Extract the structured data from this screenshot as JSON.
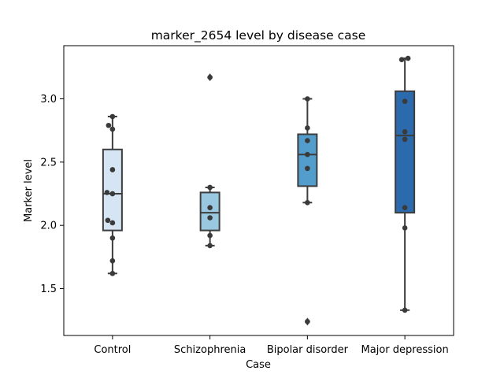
{
  "chart_data": {
    "type": "box",
    "title": "marker_2654 level by disease case",
    "xlabel": "Case",
    "ylabel": "Marker level",
    "ylim": [
      1.13,
      3.42
    ],
    "yticks": [
      "1.5",
      "2.0",
      "2.5",
      "3.0"
    ],
    "ytick_values": [
      1.5,
      2.0,
      2.5,
      3.0
    ],
    "categories": [
      "Control",
      "Schizophrenia",
      "Bipolar disorder",
      "Major depression"
    ],
    "colors": [
      "#d6e5f4",
      "#9ac8e0",
      "#529dcc",
      "#2a6aad"
    ],
    "boxes": [
      {
        "q1": 1.96,
        "median": 2.25,
        "q3": 2.6,
        "whisker_low": 1.62,
        "whisker_high": 2.86,
        "fliers": []
      },
      {
        "q1": 1.96,
        "median": 2.1,
        "q3": 2.26,
        "whisker_low": 1.84,
        "whisker_high": 2.3,
        "fliers": [
          3.17
        ]
      },
      {
        "q1": 2.31,
        "median": 2.56,
        "q3": 2.72,
        "whisker_low": 2.18,
        "whisker_high": 3.0,
        "fliers": [
          1.24
        ]
      },
      {
        "q1": 2.1,
        "median": 2.71,
        "q3": 3.06,
        "whisker_low": 1.33,
        "whisker_high": 3.32,
        "fliers": []
      }
    ],
    "points": [
      [
        {
          "y": 2.86,
          "dx": 0
        },
        {
          "y": 2.79,
          "dx": -5
        },
        {
          "y": 2.76,
          "dx": 0
        },
        {
          "y": 2.44,
          "dx": 0
        },
        {
          "y": 2.26,
          "dx": -7
        },
        {
          "y": 2.25,
          "dx": 0
        },
        {
          "y": 2.04,
          "dx": -6
        },
        {
          "y": 2.02,
          "dx": 0
        },
        {
          "y": 1.9,
          "dx": 0
        },
        {
          "y": 1.72,
          "dx": 0
        },
        {
          "y": 1.62,
          "dx": 0
        }
      ],
      [
        {
          "y": 3.17,
          "dx": 0
        },
        {
          "y": 2.3,
          "dx": 0
        },
        {
          "y": 2.14,
          "dx": 0
        },
        {
          "y": 2.06,
          "dx": 0
        },
        {
          "y": 1.92,
          "dx": 0
        },
        {
          "y": 1.84,
          "dx": 0
        }
      ],
      [
        {
          "y": 3.0,
          "dx": 0
        },
        {
          "y": 2.77,
          "dx": 0
        },
        {
          "y": 2.67,
          "dx": 0
        },
        {
          "y": 2.56,
          "dx": 0
        },
        {
          "y": 2.45,
          "dx": 0
        },
        {
          "y": 2.18,
          "dx": 0
        },
        {
          "y": 1.24,
          "dx": 0
        }
      ],
      [
        {
          "y": 3.32,
          "dx": 4
        },
        {
          "y": 3.31,
          "dx": -4
        },
        {
          "y": 2.98,
          "dx": 0
        },
        {
          "y": 2.74,
          "dx": 0
        },
        {
          "y": 2.68,
          "dx": 0
        },
        {
          "y": 2.14,
          "dx": 0
        },
        {
          "y": 1.98,
          "dx": 0
        },
        {
          "y": 1.33,
          "dx": 0
        }
      ]
    ],
    "grid": false,
    "legend": "none"
  }
}
